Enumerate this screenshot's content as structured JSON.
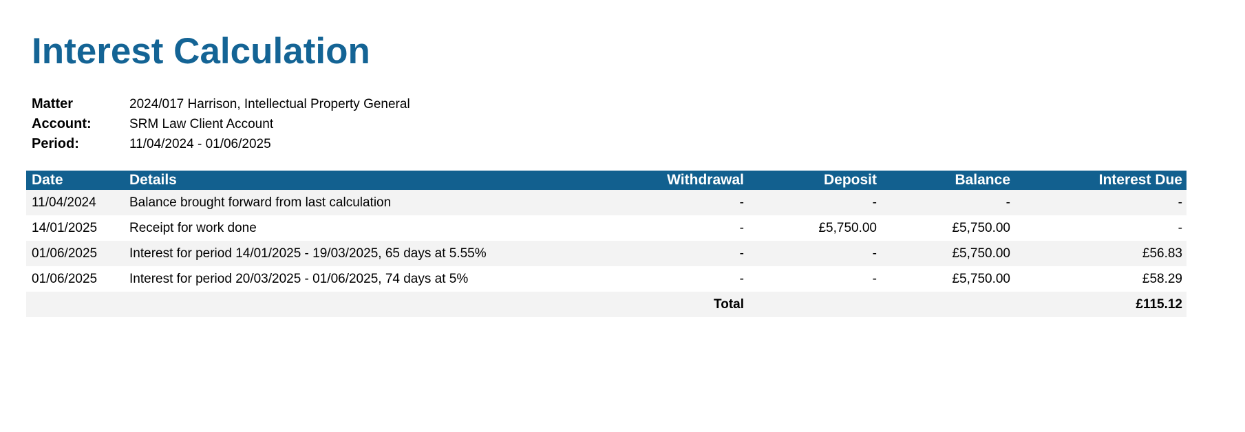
{
  "header": {
    "title": "Interest Calculation"
  },
  "meta": [
    {
      "label": "Matter",
      "value": "2024/017 Harrison, Intellectual Property General"
    },
    {
      "label": "Account:",
      "value": "SRM Law Client Account"
    },
    {
      "label": "Period:",
      "value": "11/04/2024 - 01/06/2025"
    }
  ],
  "table": {
    "columns": [
      "Date",
      "Details",
      "Withdrawal",
      "Deposit",
      "Balance",
      "Interest Due"
    ],
    "rows": [
      [
        "11/04/2024",
        "Balance brought forward from last calculation",
        "-",
        "-",
        "-",
        "-"
      ],
      [
        "14/01/2025",
        "Receipt for work done",
        "-",
        "£5,750.00",
        "£5,750.00",
        "-"
      ],
      [
        "01/06/2025",
        "Interest for period 14/01/2025 - 19/03/2025, 65 days at 5.55%",
        "-",
        "-",
        "£5,750.00",
        "£56.83"
      ],
      [
        "01/06/2025",
        "Interest for period 20/03/2025 - 01/06/2025, 74 days at 5%",
        "-",
        "-",
        "£5,750.00",
        "£58.29"
      ]
    ],
    "total": {
      "label": "Total",
      "value": "£115.12"
    }
  }
}
